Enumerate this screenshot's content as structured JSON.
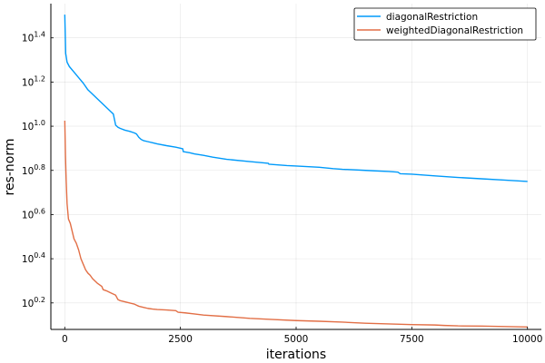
{
  "chart_data": {
    "type": "line",
    "xlabel": "iterations",
    "ylabel": "res-norm",
    "yscale": "log10",
    "grid": true,
    "legend_position": "top-right",
    "xlim": [
      -300,
      10300
    ],
    "ylim_log10": [
      0.08,
      1.555
    ],
    "x_ticks": [
      0,
      2500,
      5000,
      7500,
      10000
    ],
    "x_tick_labels": [
      "0",
      "2500",
      "5000",
      "7500",
      "10000"
    ],
    "y_ticks_log10": [
      0.2,
      0.4,
      0.6,
      0.8,
      1.0,
      1.2,
      1.4
    ],
    "y_tick_base": "10",
    "y_tick_exponents": [
      "0.2",
      "0.4",
      "0.6",
      "0.8",
      "1.0",
      "1.2",
      "1.4"
    ],
    "series": [
      {
        "name": "diagonalRestriction",
        "color": "#009AFA",
        "x": [
          1,
          20,
          50,
          100,
          200,
          300,
          400,
          500,
          600,
          700,
          800,
          900,
          1000,
          1050,
          1100,
          1150,
          1200,
          1300,
          1400,
          1500,
          1550,
          1600,
          1650,
          1700,
          1800,
          1900,
          2000,
          2200,
          2400,
          2550,
          2560,
          2700,
          2800,
          3000,
          3200,
          3500,
          4000,
          4400,
          4410,
          4800,
          5000,
          5500,
          5800,
          6000,
          6500,
          6700,
          7000,
          7200,
          7250,
          7500,
          8000,
          8500,
          9000,
          9500,
          10000
        ],
        "y_log10": [
          1.505,
          1.33,
          1.29,
          1.27,
          1.245,
          1.22,
          1.195,
          1.165,
          1.145,
          1.125,
          1.105,
          1.085,
          1.065,
          1.055,
          1.005,
          0.995,
          0.99,
          0.982,
          0.977,
          0.97,
          0.965,
          0.95,
          0.94,
          0.935,
          0.93,
          0.925,
          0.92,
          0.912,
          0.905,
          0.898,
          0.885,
          0.88,
          0.875,
          0.868,
          0.86,
          0.85,
          0.84,
          0.832,
          0.828,
          0.822,
          0.82,
          0.814,
          0.808,
          0.805,
          0.8,
          0.798,
          0.795,
          0.792,
          0.785,
          0.783,
          0.775,
          0.768,
          0.762,
          0.756,
          0.75
        ]
      },
      {
        "name": "weightedDiagonalRestriction",
        "color": "#E26F46",
        "x": [
          1,
          15,
          30,
          50,
          80,
          120,
          160,
          200,
          250,
          300,
          350,
          400,
          450,
          500,
          550,
          600,
          700,
          800,
          830,
          900,
          1000,
          1100,
          1150,
          1200,
          1300,
          1400,
          1500,
          1550,
          1600,
          1700,
          1800,
          1900,
          2000,
          2200,
          2400,
          2450,
          2600,
          2800,
          3000,
          3500,
          4000,
          4500,
          5000,
          5500,
          6000,
          6500,
          7000,
          7500,
          8000,
          8200,
          8500,
          9000,
          9500,
          10000
        ],
        "y_log10": [
          1.025,
          0.87,
          0.76,
          0.65,
          0.58,
          0.56,
          0.525,
          0.49,
          0.47,
          0.44,
          0.4,
          0.375,
          0.35,
          0.335,
          0.325,
          0.31,
          0.29,
          0.275,
          0.26,
          0.255,
          0.245,
          0.235,
          0.215,
          0.21,
          0.205,
          0.2,
          0.195,
          0.19,
          0.185,
          0.18,
          0.175,
          0.172,
          0.17,
          0.168,
          0.165,
          0.158,
          0.155,
          0.15,
          0.145,
          0.138,
          0.13,
          0.125,
          0.12,
          0.117,
          0.113,
          0.108,
          0.105,
          0.102,
          0.1,
          0.098,
          0.096,
          0.095,
          0.093,
          0.091
        ]
      }
    ]
  }
}
